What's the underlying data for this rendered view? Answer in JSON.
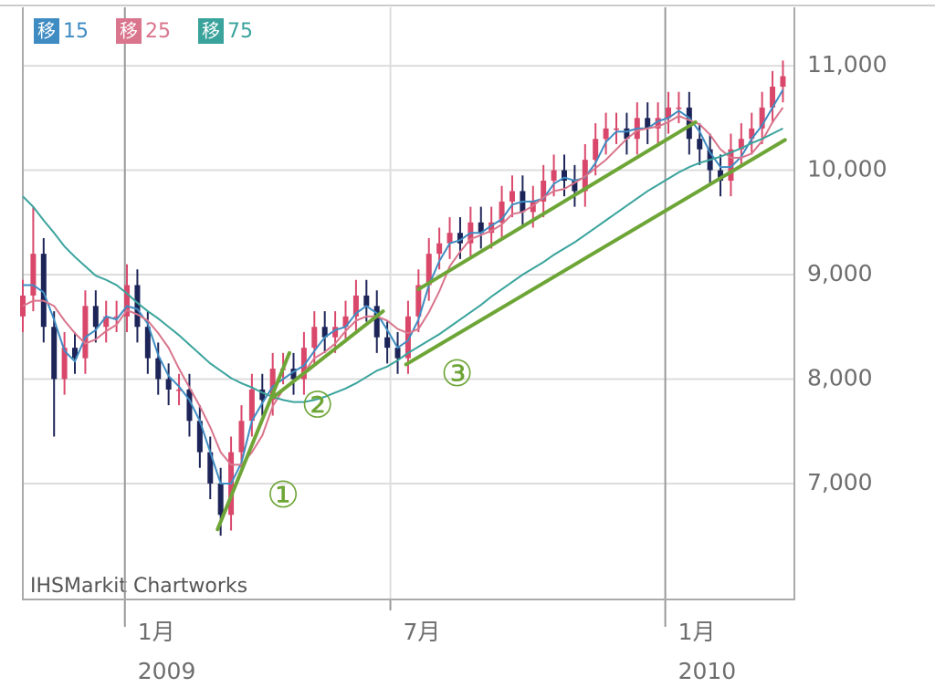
{
  "chart_data": {
    "type": "candlestick",
    "source": "IHSMarkit Chartworks",
    "legend_badge": "移",
    "up_color": "#d9486b",
    "down_color": "#1d2558",
    "x": [
      0,
      1,
      2,
      3,
      4,
      5,
      6,
      7,
      8,
      9,
      10,
      11,
      12,
      13,
      14,
      15,
      16,
      17,
      18,
      19,
      20,
      21,
      22,
      23,
      24,
      25,
      26,
      27,
      28,
      29,
      30,
      31,
      32,
      33,
      34,
      35,
      36,
      37,
      38,
      39,
      40,
      41,
      42,
      43,
      44,
      45,
      46,
      47,
      48,
      49,
      50,
      51,
      52,
      53,
      54,
      55,
      56,
      57,
      58,
      59,
      60,
      61,
      62,
      63,
      64,
      65,
      66,
      67,
      68,
      69,
      70,
      71,
      72,
      73
    ],
    "open": [
      8600,
      8800,
      9200,
      8500,
      8000,
      8300,
      8200,
      8700,
      8500,
      8600,
      8600,
      8900,
      8500,
      8200,
      8000,
      7900,
      7900,
      7600,
      7300,
      7000,
      6700,
      7300,
      7600,
      7900,
      7800,
      8100,
      8100,
      8000,
      8300,
      8500,
      8400,
      8500,
      8600,
      8800,
      8700,
      8400,
      8300,
      8200,
      8600,
      8900,
      9200,
      9300,
      9400,
      9300,
      9500,
      9400,
      9500,
      9700,
      9800,
      9600,
      9700,
      9900,
      10000,
      9900,
      9800,
      10100,
      10300,
      10400,
      10400,
      10300,
      10500,
      10400,
      10500,
      10600,
      10600,
      10300,
      10200,
      10000,
      9900,
      10200,
      10300,
      10400,
      10600,
      10800
    ],
    "high": [
      8950,
      9650,
      9350,
      8650,
      8450,
      8450,
      8850,
      8850,
      8750,
      8750,
      9100,
      9050,
      8650,
      8350,
      8150,
      8050,
      8050,
      7750,
      7450,
      7150,
      7450,
      7750,
      8050,
      8050,
      8250,
      8250,
      8250,
      8450,
      8650,
      8650,
      8650,
      8750,
      8950,
      8950,
      8850,
      8550,
      8450,
      8750,
      9050,
      9350,
      9450,
      9550,
      9550,
      9650,
      9650,
      9650,
      9850,
      9950,
      9950,
      9850,
      10050,
      10150,
      10150,
      10050,
      10250,
      10450,
      10550,
      10550,
      10550,
      10650,
      10650,
      10650,
      10750,
      10750,
      10750,
      10450,
      10350,
      10150,
      10350,
      10450,
      10550,
      10750,
      10950,
      11050
    ],
    "low": [
      8450,
      8650,
      8350,
      7450,
      7850,
      8050,
      8050,
      8350,
      8350,
      8450,
      8450,
      8350,
      8050,
      7850,
      7750,
      7750,
      7450,
      7150,
      6850,
      6500,
      6550,
      7150,
      7450,
      7650,
      7650,
      7950,
      7850,
      7850,
      8150,
      8250,
      8250,
      8350,
      8450,
      8550,
      8250,
      8150,
      8050,
      8050,
      8450,
      8750,
      9050,
      9150,
      9150,
      9150,
      9250,
      9250,
      9350,
      9550,
      9450,
      9450,
      9550,
      9750,
      9750,
      9650,
      9650,
      9950,
      10150,
      10250,
      10150,
      10150,
      10250,
      10250,
      10350,
      10450,
      10150,
      10050,
      9850,
      9750,
      9750,
      10050,
      10150,
      10250,
      10450,
      10650
    ],
    "close": [
      8800,
      9200,
      8500,
      8000,
      8300,
      8200,
      8700,
      8500,
      8600,
      8600,
      8900,
      8500,
      8200,
      8000,
      7900,
      7900,
      7600,
      7300,
      7000,
      6700,
      7300,
      7600,
      7900,
      7800,
      8100,
      8100,
      8000,
      8300,
      8500,
      8400,
      8500,
      8600,
      8800,
      8700,
      8400,
      8300,
      8200,
      8600,
      8900,
      9200,
      9300,
      9400,
      9300,
      9500,
      9400,
      9500,
      9700,
      9800,
      9600,
      9700,
      9900,
      10000,
      9900,
      9800,
      10100,
      10300,
      10400,
      10400,
      10300,
      10500,
      10400,
      10500,
      10600,
      10600,
      10300,
      10200,
      10000,
      9900,
      10200,
      10300,
      10400,
      10600,
      10800,
      10900
    ],
    "series": [
      {
        "name": "15",
        "color": "#3f8cc2",
        "values": [
          8900,
          8900,
          8830,
          8570,
          8270,
          8170,
          8400,
          8470,
          8600,
          8570,
          8700,
          8670,
          8530,
          8230,
          8030,
          7930,
          7800,
          7600,
          7300,
          7000,
          7000,
          7200,
          7600,
          7770,
          7930,
          8000,
          8070,
          8130,
          8270,
          8400,
          8470,
          8500,
          8630,
          8700,
          8630,
          8470,
          8300,
          8370,
          8570,
          8900,
          9130,
          9300,
          9330,
          9400,
          9400,
          9470,
          9530,
          9670,
          9700,
          9700,
          9730,
          9870,
          9930,
          9900,
          9930,
          10070,
          10270,
          10370,
          10370,
          10400,
          10400,
          10470,
          10500,
          10570,
          10500,
          10370,
          10170,
          10030,
          10030,
          10130,
          10300,
          10430,
          10600,
          10770
        ]
      },
      {
        "name": "25",
        "color": "#d9758c",
        "values": [
          8700,
          8750,
          8750,
          8700,
          8560,
          8440,
          8340,
          8380,
          8460,
          8520,
          8660,
          8620,
          8560,
          8440,
          8300,
          8100,
          7920,
          7740,
          7540,
          7300,
          7180,
          7180,
          7300,
          7460,
          7740,
          7900,
          7980,
          8060,
          8200,
          8260,
          8340,
          8460,
          8560,
          8600,
          8600,
          8560,
          8480,
          8440,
          8480,
          8640,
          8840,
          9080,
          9220,
          9340,
          9380,
          9420,
          9480,
          9580,
          9600,
          9660,
          9740,
          9800,
          9820,
          9880,
          9940,
          10020,
          10100,
          10200,
          10300,
          10380,
          10400,
          10420,
          10460,
          10520,
          10480,
          10440,
          10340,
          10200,
          10120,
          10120,
          10160,
          10280,
          10460,
          10600
        ]
      },
      {
        "name": "75",
        "color": "#3aa39c",
        "values": [
          9750,
          9650,
          9520,
          9400,
          9270,
          9170,
          9080,
          8990,
          8950,
          8900,
          8820,
          8730,
          8650,
          8580,
          8500,
          8420,
          8330,
          8240,
          8150,
          8080,
          8010,
          7960,
          7920,
          7870,
          7830,
          7800,
          7780,
          7780,
          7800,
          7830,
          7870,
          7910,
          7960,
          8020,
          8080,
          8120,
          8180,
          8250,
          8310,
          8370,
          8430,
          8500,
          8570,
          8640,
          8710,
          8790,
          8860,
          8930,
          9000,
          9060,
          9120,
          9190,
          9250,
          9310,
          9380,
          9450,
          9520,
          9590,
          9660,
          9730,
          9800,
          9860,
          9920,
          9980,
          10030,
          10070,
          10100,
          10130,
          10170,
          10210,
          10260,
          10300,
          10350,
          10400
        ]
      }
    ],
    "trendline_color": "#6ea537",
    "trendlines": [
      {
        "label": "①",
        "x": [
          18.7,
          25.6
        ],
        "y": [
          6560,
          8250
        ],
        "label_x": 25,
        "label_y": 6870
      },
      {
        "label": "②",
        "x": [
          24.1,
          34.6
        ],
        "y": [
          7830,
          8650
        ],
        "label_x": 28.3,
        "label_y": 7730
      },
      {
        "label": "③",
        "x": [
          36.8,
          73.2
        ],
        "y": [
          8140,
          10290
        ],
        "label_x": 41.7,
        "label_y": 8030
      },
      {
        "x": [
          38,
          64.6
        ],
        "y": [
          8860,
          10460
        ]
      }
    ],
    "xlim": [
      0,
      74.1
    ],
    "xticks": [
      {
        "value": 9.8,
        "label": "1月",
        "sublabel": "2009"
      },
      {
        "value": 35.3,
        "label": "7月"
      },
      {
        "value": 61.7,
        "label": "1月",
        "sublabel": "2010"
      }
    ],
    "ylim": [
      5890,
      11560
    ],
    "yticks": [
      {
        "value": 7000,
        "label": "7,000"
      },
      {
        "value": 8000,
        "label": "8,000"
      },
      {
        "value": 9000,
        "label": "9,000"
      },
      {
        "value": 10000,
        "label": "10,000"
      },
      {
        "value": 11000,
        "label": "11,000"
      }
    ],
    "grid": true
  }
}
